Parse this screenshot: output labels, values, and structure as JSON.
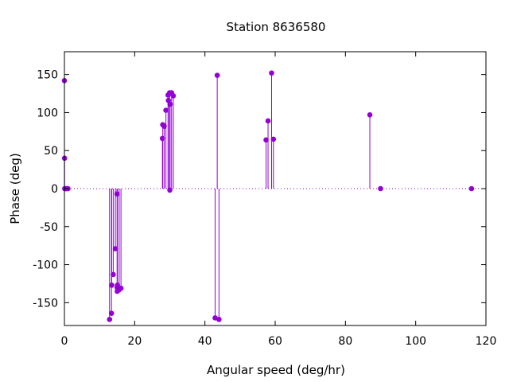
{
  "chart_data": {
    "type": "scatter",
    "style": "impulses-with-points",
    "title": "Station 8636580",
    "xlabel": "Angular speed (deg/hr)",
    "ylabel": "Phase (deg)",
    "xlim": [
      0,
      120
    ],
    "ylim": [
      -180,
      180
    ],
    "xticks": [
      0,
      20,
      40,
      60,
      80,
      100,
      120
    ],
    "yticks": [
      -150,
      -100,
      -50,
      0,
      50,
      100,
      150
    ],
    "grid": false,
    "zero_line": "dotted",
    "series_color": "#9400d3",
    "points": [
      {
        "x": 0.0,
        "y": 142
      },
      {
        "x": 0.04,
        "y": 40
      },
      {
        "x": 0.08,
        "y": 0
      },
      {
        "x": 0.5,
        "y": 0
      },
      {
        "x": 0.55,
        "y": 0
      },
      {
        "x": 1.0,
        "y": 0
      },
      {
        "x": 12.85,
        "y": -172
      },
      {
        "x": 13.4,
        "y": -164
      },
      {
        "x": 13.47,
        "y": -127
      },
      {
        "x": 13.9,
        "y": -113
      },
      {
        "x": 14.5,
        "y": -79
      },
      {
        "x": 14.96,
        "y": -7
      },
      {
        "x": 15.0,
        "y": -130
      },
      {
        "x": 15.04,
        "y": -135
      },
      {
        "x": 15.1,
        "y": -127
      },
      {
        "x": 15.6,
        "y": -133
      },
      {
        "x": 16.1,
        "y": -131
      },
      {
        "x": 27.9,
        "y": 66
      },
      {
        "x": 28.0,
        "y": 84
      },
      {
        "x": 28.4,
        "y": 82
      },
      {
        "x": 28.9,
        "y": 103
      },
      {
        "x": 29.5,
        "y": 123
      },
      {
        "x": 29.6,
        "y": 116
      },
      {
        "x": 29.96,
        "y": 126
      },
      {
        "x": 30.0,
        "y": -2
      },
      {
        "x": 30.08,
        "y": 111
      },
      {
        "x": 30.5,
        "y": 126
      },
      {
        "x": 31.0,
        "y": 122
      },
      {
        "x": 42.9,
        "y": -170
      },
      {
        "x": 43.5,
        "y": 149
      },
      {
        "x": 44.0,
        "y": -172
      },
      {
        "x": 57.4,
        "y": 64
      },
      {
        "x": 57.97,
        "y": 89
      },
      {
        "x": 58.98,
        "y": 152
      },
      {
        "x": 59.5,
        "y": 65
      },
      {
        "x": 86.95,
        "y": 97
      },
      {
        "x": 90.0,
        "y": 0
      },
      {
        "x": 115.9,
        "y": 0
      }
    ]
  }
}
